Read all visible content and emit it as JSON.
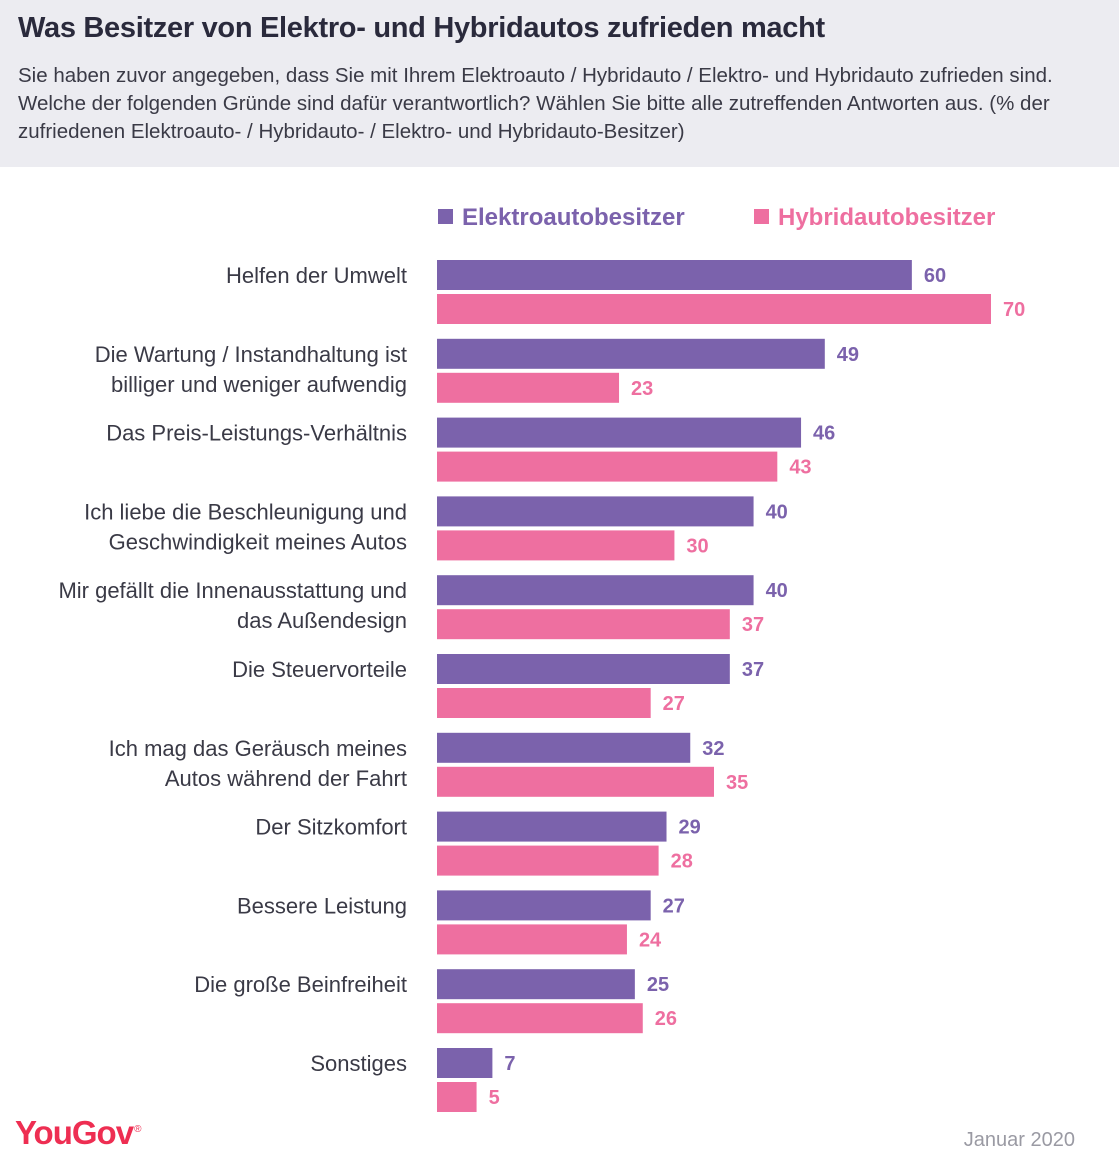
{
  "header": {
    "title": "Was Besitzer von Elektro- und Hybridautos zufrieden macht",
    "subtitle": "Sie haben zuvor angegeben, dass Sie mit Ihrem Elektroauto / Hybridauto / Elektro- und Hybridauto zufrieden sind. Welche der folgenden Gründe sind dafür verantwortlich? Wählen Sie bitte alle zutreffenden Antworten aus. (% der zufriedenen Elektroauto- / Hybridauto- / Elektro- und Hybridauto-Besitzer)"
  },
  "colors": {
    "elektro": "#7b62ac",
    "hybrid": "#ee6fa0",
    "label": "#3a3a46"
  },
  "chart_data": {
    "type": "bar",
    "orientation": "horizontal",
    "title": "Was Besitzer von Elektro- und Hybridautos zufrieden macht",
    "xlim": [
      0,
      70
    ],
    "legend_position": "top",
    "categories": [
      [
        "Helfen der Umwelt"
      ],
      [
        "Die Wartung / Instandhaltung ist",
        "billiger und weniger aufwendig"
      ],
      [
        "Das Preis-Leistungs-Verhältnis"
      ],
      [
        "Ich liebe die Beschleunigung und",
        "Geschwindigkeit meines Autos"
      ],
      [
        "Mir gefällt die Innenausstattung und",
        "das Außendesign"
      ],
      [
        "Die Steuervorteile"
      ],
      [
        "Ich mag das Geräusch meines",
        "Autos während der Fahrt"
      ],
      [
        "Der Sitzkomfort"
      ],
      [
        "Bessere Leistung"
      ],
      [
        "Die große Beinfreiheit"
      ],
      [
        "Sonstiges"
      ]
    ],
    "series": [
      {
        "name": "Elektroautobesitzer",
        "values": [
          60,
          49,
          46,
          40,
          40,
          37,
          32,
          29,
          27,
          25,
          7
        ]
      },
      {
        "name": "Hybridautobesitzer",
        "values": [
          70,
          23,
          43,
          30,
          37,
          27,
          35,
          28,
          24,
          26,
          5
        ]
      }
    ]
  },
  "footer": {
    "logo": "YouGov",
    "logo_mark": "®",
    "date": "Januar 2020"
  }
}
